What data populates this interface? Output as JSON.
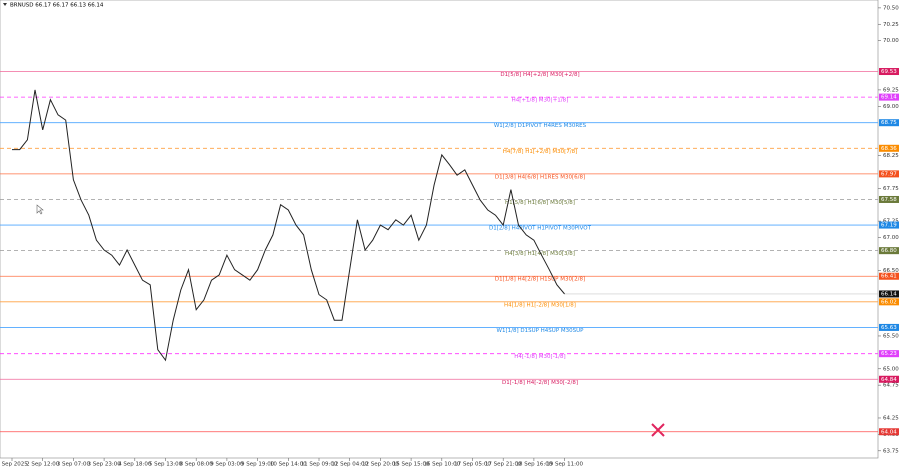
{
  "chart_data": {
    "type": "line",
    "title": "BRNUSD  66.17 66.17 66.13 66.14",
    "color": "#222222",
    "ylim": [
      63.64,
      70.62
    ],
    "yticks": [
      {
        "value": 70.5,
        "label": "70.50"
      },
      70.25,
      {
        "value": 70,
        "label": "70.00"
      },
      69.25,
      {
        "value": 69,
        "label": "69.00"
      },
      68.25,
      67.75,
      67.25,
      {
        "value": 67,
        "label": "67.00"
      },
      {
        "value": 66.5,
        "label": "66.50"
      },
      {
        "value": 65.5,
        "label": "65.50"
      },
      {
        "value": 65,
        "label": "65.00"
      },
      64.75,
      64.25,
      {
        "value": 64,
        "label": "64.00"
      },
      63.75
    ],
    "categories": [
      "1 Sep 2025",
      null,
      null,
      null,
      "2 Sep 12:00",
      null,
      null,
      null,
      "3 Sep 07:00",
      null,
      null,
      null,
      "3 Sep 23:00",
      null,
      null,
      null,
      "4 Sep 18:00",
      null,
      null,
      null,
      "5 Sep 13:00",
      null,
      null,
      null,
      "8 Sep 08:00",
      null,
      null,
      null,
      "9 Sep 03:00",
      null,
      null,
      null,
      "9 Sep 19:00",
      null,
      null,
      null,
      "10 Sep 14:00",
      null,
      null,
      null,
      "11 Sep 09:00",
      null,
      null,
      null,
      "12 Sep 04:00",
      null,
      null,
      null,
      "12 Sep 20:00",
      null,
      null,
      null,
      "15 Sep 15:00",
      null,
      null,
      null,
      "16 Sep 10:00",
      null,
      null,
      null,
      "17 Sep 05:00",
      null,
      null,
      null,
      "17 Sep 21:00",
      null,
      null,
      null,
      "18 Sep 16:00",
      null,
      null,
      null,
      "19 Sep 11:00"
    ],
    "values": [
      68.34,
      68.34,
      68.49,
      69.25,
      68.64,
      69.1,
      68.87,
      68.79,
      67.88,
      67.57,
      67.34,
      66.96,
      66.81,
      66.73,
      66.58,
      66.81,
      66.58,
      66.35,
      66.28,
      65.29,
      65.13,
      65.74,
      66.2,
      66.51,
      65.9,
      66.05,
      66.35,
      66.43,
      66.73,
      66.51,
      66.43,
      66.35,
      66.51,
      66.81,
      67.04,
      67.5,
      67.42,
      67.19,
      67.04,
      66.51,
      66.13,
      66.05,
      65.74,
      65.74,
      66.51,
      67.27,
      66.81,
      66.96,
      67.19,
      67.12,
      67.27,
      67.19,
      67.34,
      66.96,
      67.19,
      67.8,
      68.26,
      68.11,
      67.95,
      68.03,
      67.8,
      67.57,
      67.42,
      67.34,
      67.19,
      67.73,
      67.19,
      67.04,
      66.96,
      66.73,
      66.51,
      66.28,
      66.14
    ],
    "levels": [
      {
        "label": "D1[5/8] H4[+2/8] M30[+2/8]",
        "value": 69.53,
        "color": "#f0689a",
        "tag_color": "#d81b60",
        "dash": false
      },
      {
        "label": "H4[+1/8] M30[+1/8]",
        "value": 69.14,
        "color": "#ff33ff",
        "tag_color": "#e040fb",
        "dash": true
      },
      {
        "label": "W1[2/8] D1PIVOT H4RES M30RES",
        "value": 68.75,
        "color": "#4da6ff",
        "tag_color": "#1e88e5",
        "dash": false
      },
      {
        "label": "H4[7/8] H1[+2/8] M30[7/8]",
        "value": 68.36,
        "color": "#ffa040",
        "tag_color": "#fb8c00",
        "dash": true
      },
      {
        "label": "D1[3/8] H4[6/8] H1RES M30[6/8]",
        "value": 67.97,
        "color": "#ff7043",
        "tag_color": "#f4511e",
        "dash": false
      },
      {
        "label": "H1[5/8] H1[6/8] M30[5/8]",
        "value": 67.58,
        "color": "#999999",
        "tag_color": "#6b7a3a",
        "dash": true
      },
      {
        "label": "D1[2/8] H4PIVOT H1PIVOT M30PIVOT",
        "value": 67.19,
        "color": "#4da6ff",
        "tag_color": "#1e88e5",
        "dash": false
      },
      {
        "label": "H4[3/8] H1[4/8] M30[3/8]",
        "value": 66.8,
        "value_label": "66.80",
        "color": "#999999",
        "tag_color": "#6b7a3a",
        "dash": true
      },
      {
        "label": "D1[1/8] H4[2/8] H1SUP M30[2/8]",
        "value": 66.41,
        "color": "#ff7043",
        "tag_color": "#f4511e",
        "dash": false
      },
      {
        "label": "H4[1/8] H1[-2/8] M30[1/8]",
        "value": 66.02,
        "color": "#ffa040",
        "tag_color": "#fb8c00",
        "dash": false
      },
      {
        "label": "W1[1/8] D1SUP H4SUP M30SUP",
        "value": 65.63,
        "color": "#4da6ff",
        "tag_color": "#1e88e5",
        "dash": false
      },
      {
        "label": "H4[-1/8] M30[-1/8]",
        "value": 65.23,
        "color": "#ff33ff",
        "tag_color": "#e040fb",
        "dash": true
      },
      {
        "label": "D1[-1/8] H4[-2/8] M30[-2/8]",
        "value": 64.84,
        "color": "#f0689a",
        "tag_color": "#d81b60",
        "dash": false
      },
      {
        "value": 64.04,
        "color": "#ff4d4d",
        "tag_color": "#e53935",
        "dash": false
      }
    ],
    "current_price": 66.14
  }
}
